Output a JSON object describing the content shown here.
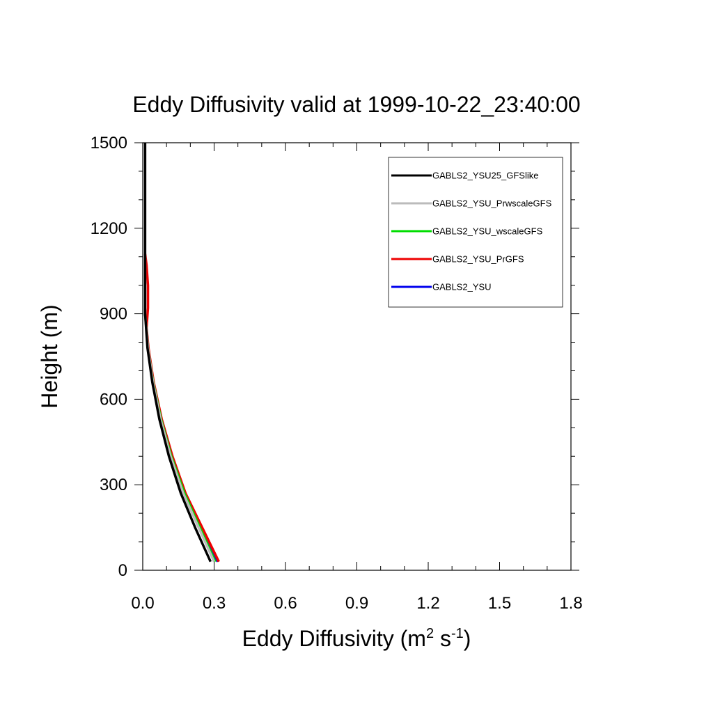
{
  "chart_data": {
    "type": "line",
    "title": "Eddy Diffusivity valid at 1999-10-22_23:40:00",
    "xlabel": {
      "base": "Eddy Diffusivity (m",
      "sup1": "2",
      "mid": " s",
      "sup2": "-1",
      "end": ")"
    },
    "ylabel": "Height (m)",
    "xlim": [
      0,
      1.8
    ],
    "ylim": [
      0,
      1500
    ],
    "xticks": [
      0.0,
      0.3,
      0.6,
      0.9,
      1.2,
      1.5,
      1.8
    ],
    "xtick_labels": [
      "0.0",
      "0.3",
      "0.6",
      "0.9",
      "1.2",
      "1.5",
      "1.8"
    ],
    "yticks": [
      0,
      300,
      600,
      900,
      1200,
      1500
    ],
    "ytick_labels": [
      "0",
      "300",
      "600",
      "900",
      "1200",
      "1500"
    ],
    "grid": false,
    "legend_position": "top-right",
    "series": [
      {
        "name": "GABLS2_YSU25_GFSlike",
        "color": "#000000",
        "x": [
          0.285,
          0.22,
          0.16,
          0.11,
          0.07,
          0.04,
          0.02,
          0.01,
          0.01,
          0.01,
          0.01
        ],
        "y": [
          30,
          150,
          270,
          400,
          530,
          660,
          780,
          900,
          1100,
          1300,
          1500
        ]
      },
      {
        "name": "GABLS2_YSU_PrwscaleGFS",
        "color": "#bbbbbb",
        "x": [
          0.3,
          0.235,
          0.17,
          0.117,
          0.075,
          0.043,
          0.022,
          0.01,
          0.01
        ],
        "y": [
          30,
          150,
          270,
          400,
          530,
          660,
          780,
          900,
          1100
        ]
      },
      {
        "name": "GABLS2_YSU_wscaleGFS",
        "color": "#00dd00",
        "x": [
          0.305,
          0.24,
          0.175,
          0.12,
          0.077,
          0.044,
          0.022,
          0.01
        ],
        "y": [
          30,
          150,
          270,
          400,
          530,
          660,
          780,
          900
        ]
      },
      {
        "name": "GABLS2_YSU_PrGFS",
        "color": "#ee0000",
        "x": [
          0.32,
          0.25,
          0.18,
          0.125,
          0.08,
          0.046,
          0.024,
          0.016,
          0.022,
          0.022,
          0.016,
          0.01
        ],
        "y": [
          30,
          150,
          270,
          400,
          530,
          660,
          780,
          850,
          920,
          1000,
          1070,
          1110
        ]
      },
      {
        "name": "GABLS2_YSU",
        "color": "#0000ee",
        "x": [
          0.315,
          0.245,
          0.178,
          0.123,
          0.079,
          0.045,
          0.023,
          0.01
        ],
        "y": [
          30,
          150,
          270,
          400,
          530,
          660,
          780,
          900
        ]
      }
    ]
  }
}
